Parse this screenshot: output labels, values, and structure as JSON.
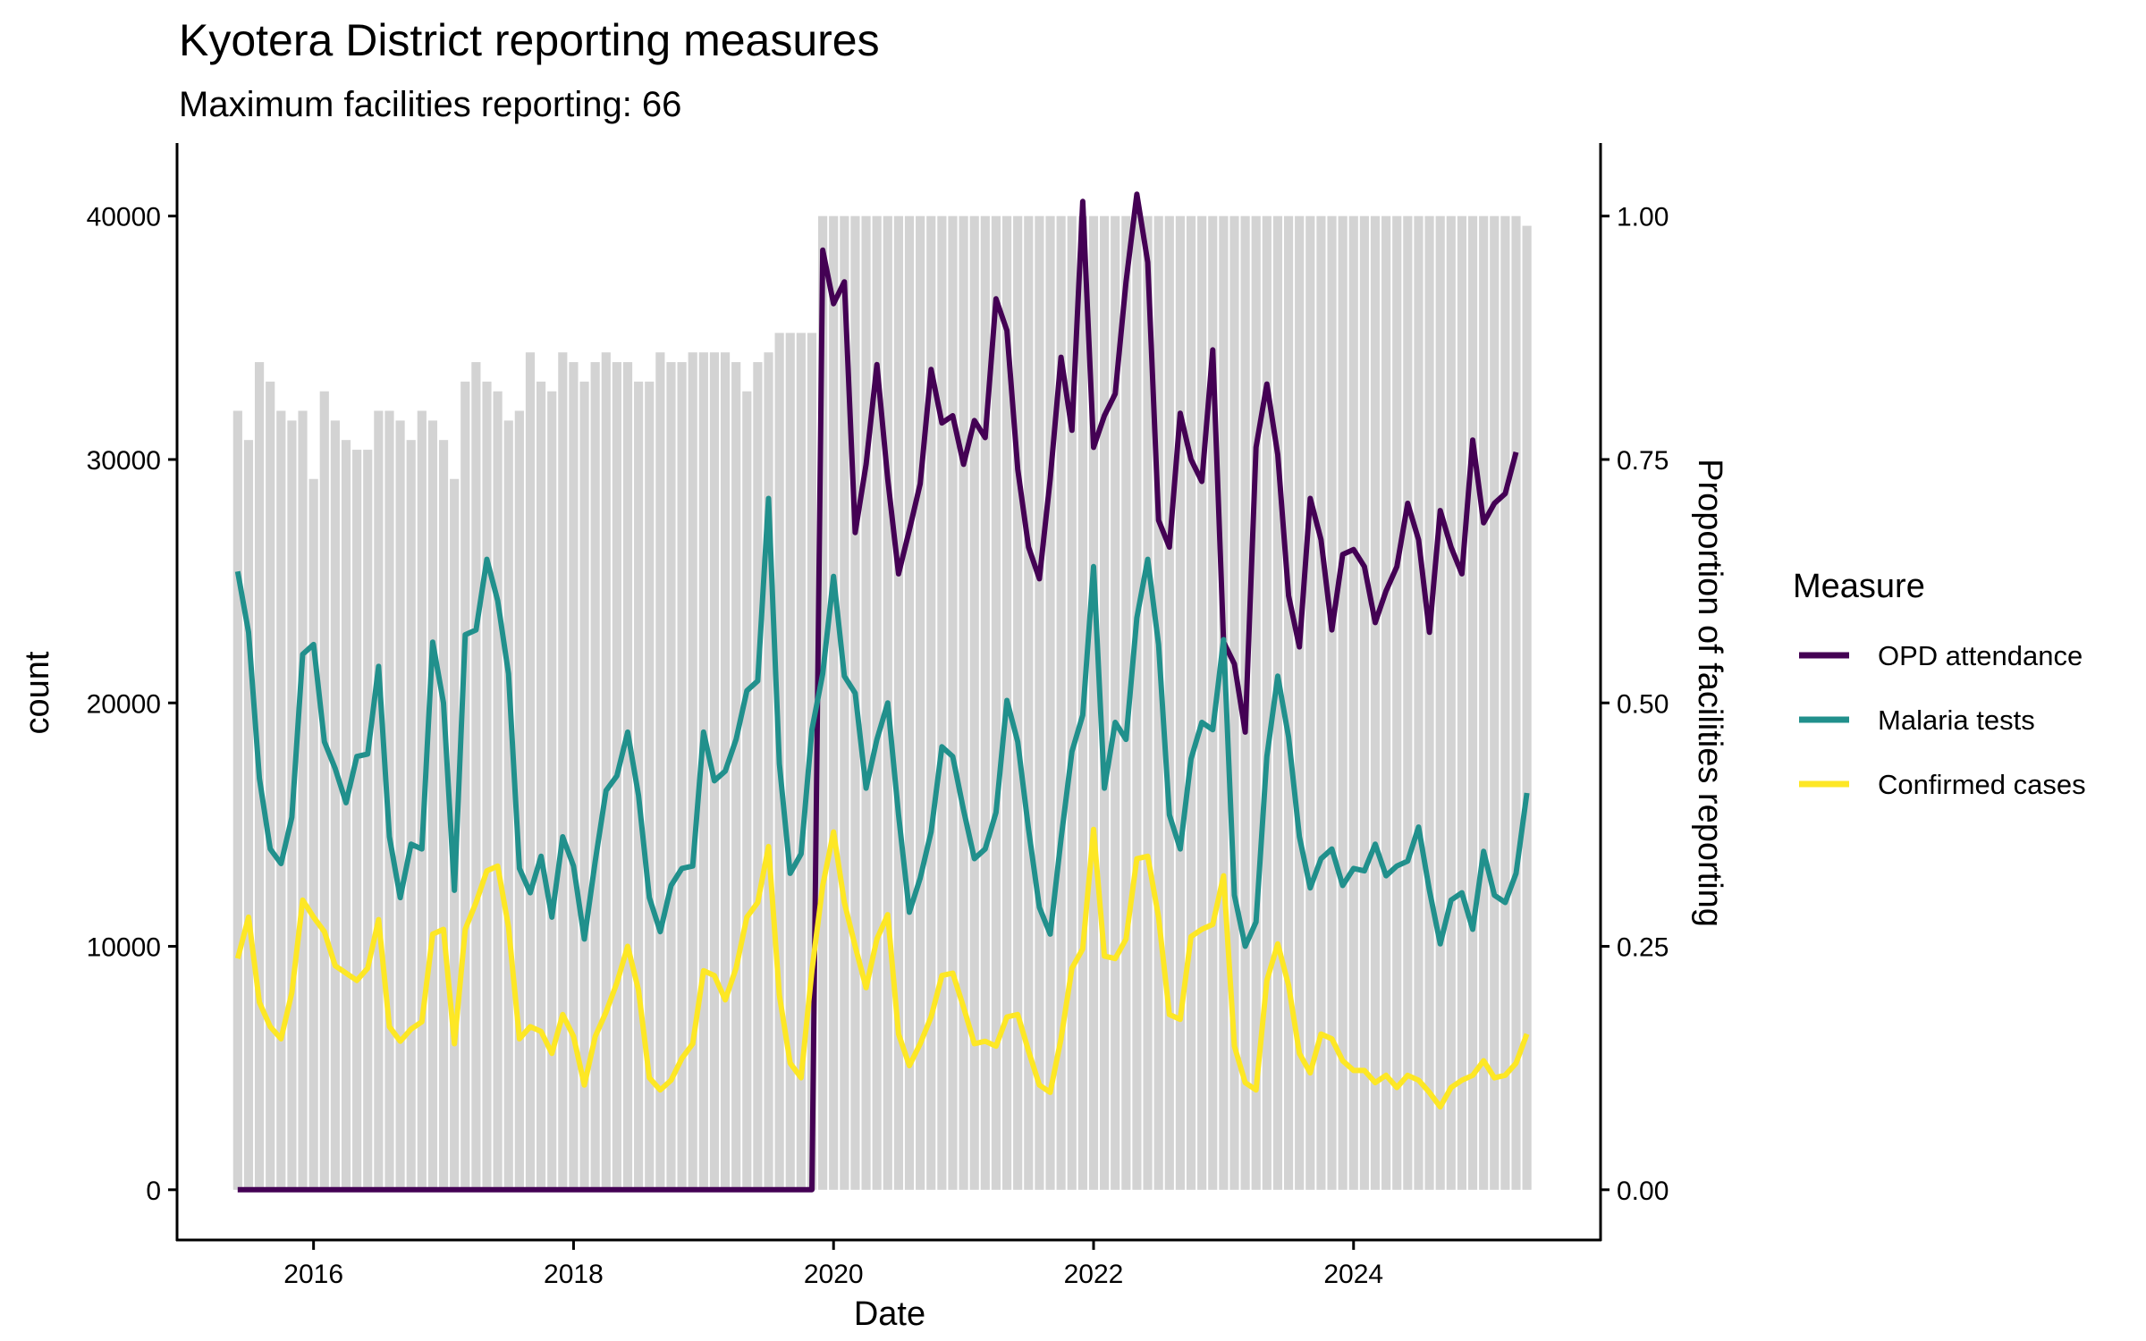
{
  "chart_data": {
    "type": "line",
    "title": "Kyotera District reporting measures",
    "subtitle": "Maximum facilities reporting: 66",
    "xlabel": "Date",
    "ylabel": "count",
    "y2label": "Proportion of facilities reporting",
    "grid": false,
    "xlim": [
      2014.95,
      2025.9
    ],
    "ylim": [
      -2100,
      43000
    ],
    "y2lim": [
      -0.0525,
      1.075
    ],
    "x_ticks": [
      2016,
      2018,
      2020,
      2022,
      2024
    ],
    "x_tick_labels": [
      "2016",
      "2018",
      "2020",
      "2022",
      "2024"
    ],
    "y_ticks": [
      0,
      10000,
      20000,
      30000,
      40000
    ],
    "y_tick_labels": [
      "0",
      "10000",
      "20000",
      "30000",
      "40000"
    ],
    "y2_ticks": [
      0,
      0.25,
      0.5,
      0.75,
      1.0
    ],
    "y2_tick_labels": [
      "0.00",
      "0.25",
      "0.50",
      "0.75",
      "1.00"
    ],
    "start_month": "2015-06",
    "n_months": 120,
    "legend": {
      "title": "Measure",
      "position": "right",
      "entries": [
        "OPD attendance",
        "Malaria tests",
        "Confirmed cases"
      ]
    },
    "bars": {
      "name": "Proportion of facilities reporting",
      "color": "#d3d3d3",
      "values": [
        0.8,
        0.77,
        0.85,
        0.83,
        0.8,
        0.79,
        0.8,
        0.73,
        0.82,
        0.79,
        0.77,
        0.76,
        0.76,
        0.8,
        0.8,
        0.79,
        0.77,
        0.8,
        0.79,
        0.77,
        0.73,
        0.83,
        0.85,
        0.83,
        0.82,
        0.79,
        0.8,
        0.86,
        0.83,
        0.82,
        0.86,
        0.85,
        0.83,
        0.85,
        0.86,
        0.85,
        0.85,
        0.83,
        0.83,
        0.86,
        0.85,
        0.85,
        0.86,
        0.86,
        0.86,
        0.86,
        0.85,
        0.82,
        0.85,
        0.86,
        0.88,
        0.88,
        0.88,
        0.88,
        1.0,
        1.0,
        1.0,
        1.0,
        1.0,
        1.0,
        1.0,
        1.0,
        1.0,
        1.0,
        1.0,
        1.0,
        1.0,
        1.0,
        1.0,
        1.0,
        1.0,
        1.0,
        1.0,
        1.0,
        1.0,
        1.0,
        1.0,
        1.0,
        1.0,
        1.0,
        1.0,
        1.0,
        1.0,
        1.0,
        1.0,
        1.0,
        1.0,
        1.0,
        1.0,
        1.0,
        1.0,
        1.0,
        1.0,
        1.0,
        1.0,
        1.0,
        1.0,
        1.0,
        1.0,
        1.0,
        1.0,
        1.0,
        1.0,
        1.0,
        1.0,
        1.0,
        1.0,
        1.0,
        1.0,
        1.0,
        1.0,
        1.0,
        1.0,
        1.0,
        1.0,
        1.0,
        1.0,
        1.0,
        1.0,
        0.99
      ]
    },
    "series": [
      {
        "name": "OPD attendance",
        "color": "#440154",
        "values": [
          0,
          0,
          0,
          0,
          0,
          0,
          0,
          0,
          0,
          0,
          0,
          0,
          0,
          0,
          0,
          0,
          0,
          0,
          0,
          0,
          0,
          0,
          0,
          0,
          0,
          0,
          0,
          0,
          0,
          0,
          0,
          0,
          0,
          0,
          0,
          0,
          0,
          0,
          0,
          0,
          0,
          0,
          0,
          0,
          0,
          0,
          0,
          0,
          0,
          0,
          0,
          0,
          0,
          0,
          38600,
          36400,
          37300,
          27000,
          29800,
          33900,
          29200,
          25300,
          27100,
          29000,
          33700,
          31500,
          31800,
          29800,
          31600,
          30900,
          36600,
          35300,
          29600,
          26400,
          25100,
          29200,
          34200,
          31200,
          40600,
          30500,
          31800,
          32700,
          37300,
          40900,
          38100,
          27500,
          26400,
          31900,
          30000,
          29100,
          34500,
          22500,
          21600,
          18800,
          30500,
          33100,
          30200,
          24400,
          22300,
          28400,
          26700,
          23000,
          26100,
          26300,
          25600,
          23300,
          24600,
          25600,
          28200,
          26700,
          22900,
          27900,
          26400,
          25300,
          30800,
          27400,
          28200,
          28600,
          30300
        ]
      },
      {
        "name": "Malaria tests",
        "color": "#21908c",
        "values": [
          25400,
          22900,
          16900,
          14000,
          13400,
          15300,
          22000,
          22400,
          18400,
          17300,
          15900,
          17800,
          17900,
          21500,
          14500,
          12000,
          14200,
          14000,
          22500,
          20000,
          12300,
          22800,
          23000,
          25900,
          24200,
          21200,
          13200,
          12200,
          13700,
          11200,
          14500,
          13300,
          10300,
          13500,
          16400,
          17000,
          18800,
          16200,
          12000,
          10600,
          12500,
          13200,
          13300,
          18800,
          16800,
          17200,
          18500,
          20500,
          20900,
          28400,
          17500,
          13000,
          13800,
          18900,
          21200,
          25200,
          21100,
          20400,
          16500,
          18500,
          20000,
          15400,
          11400,
          12800,
          14700,
          18200,
          17800,
          15600,
          13600,
          14000,
          15500,
          20100,
          18400,
          14800,
          11600,
          10500,
          14400,
          18000,
          19500,
          25600,
          16500,
          19200,
          18500,
          23500,
          25900,
          22400,
          15400,
          14000,
          17700,
          19200,
          18900,
          22600,
          12100,
          10000,
          11000,
          17800,
          21100,
          18600,
          14500,
          12400,
          13600,
          14000,
          12500,
          13200,
          13100,
          14200,
          12900,
          13300,
          13500,
          14900,
          12300,
          10100,
          11900,
          12200,
          10700,
          13900,
          12100,
          11800,
          13000,
          16300
        ]
      },
      {
        "name": "Confirmed cases",
        "color": "#fde725",
        "values": [
          9500,
          11200,
          7700,
          6700,
          6200,
          8100,
          11900,
          11200,
          10600,
          9200,
          8900,
          8600,
          9100,
          11100,
          6700,
          6100,
          6600,
          6900,
          10500,
          10700,
          6000,
          10700,
          11800,
          13100,
          13300,
          10800,
          6200,
          6700,
          6500,
          5600,
          7200,
          6300,
          4300,
          6300,
          7300,
          8500,
          10000,
          8200,
          4600,
          4100,
          4500,
          5400,
          6000,
          9000,
          8800,
          7800,
          9100,
          11200,
          11800,
          14100,
          8000,
          5200,
          4600,
          9000,
          12500,
          14700,
          11800,
          10000,
          8300,
          10300,
          11300,
          6400,
          5100,
          6000,
          7100,
          8800,
          8900,
          7500,
          6000,
          6100,
          5900,
          7100,
          7200,
          5700,
          4300,
          4000,
          6200,
          9100,
          9900,
          14800,
          9600,
          9500,
          10300,
          13600,
          13700,
          11200,
          7200,
          7000,
          10400,
          10700,
          10900,
          12900,
          5900,
          4400,
          4100,
          8600,
          10100,
          8400,
          5600,
          4800,
          6400,
          6200,
          5300,
          4900,
          4900,
          4400,
          4700,
          4200,
          4700,
          4500,
          4000,
          3400,
          4200,
          4500,
          4700,
          5300,
          4600,
          4700,
          5200,
          6400
        ]
      }
    ]
  }
}
